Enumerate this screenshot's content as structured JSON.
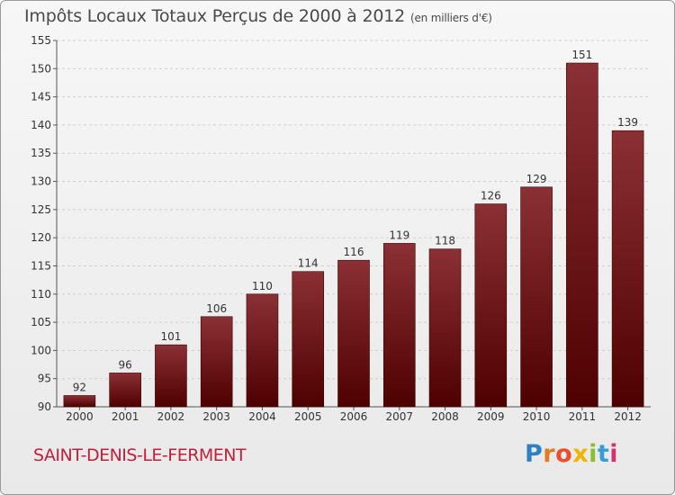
{
  "header": {
    "title": "Impôts Locaux Totaux Perçus de 2000 à 2012",
    "unit": "(en milliers d'€)"
  },
  "footer": {
    "commune": "SAINT-DENIS-LE-FERMENT",
    "logo": [
      "P",
      "r",
      "o",
      "x",
      "i",
      "t",
      "i"
    ]
  },
  "colors": {
    "bar_top": "#8b3035",
    "bar_bottom": "#4e0000",
    "grid": "#cfcfcf",
    "text": "#333333",
    "title": "#4a4a4a",
    "commune": "#c21f3a"
  },
  "chart_data": {
    "type": "bar",
    "title": "Impôts Locaux Totaux Perçus de 2000 à 2012",
    "ylabel": "(en milliers d'€)",
    "xlabel": "",
    "categories": [
      "2000",
      "2001",
      "2002",
      "2003",
      "2004",
      "2005",
      "2006",
      "2007",
      "2008",
      "2009",
      "2010",
      "2011",
      "2012"
    ],
    "values": [
      92,
      96,
      101,
      106,
      110,
      114,
      116,
      119,
      118,
      126,
      129,
      151,
      139
    ],
    "ylim": [
      90,
      155
    ],
    "yticks": [
      90,
      95,
      100,
      105,
      110,
      115,
      120,
      125,
      130,
      135,
      140,
      145,
      150,
      155
    ],
    "grid": true
  }
}
